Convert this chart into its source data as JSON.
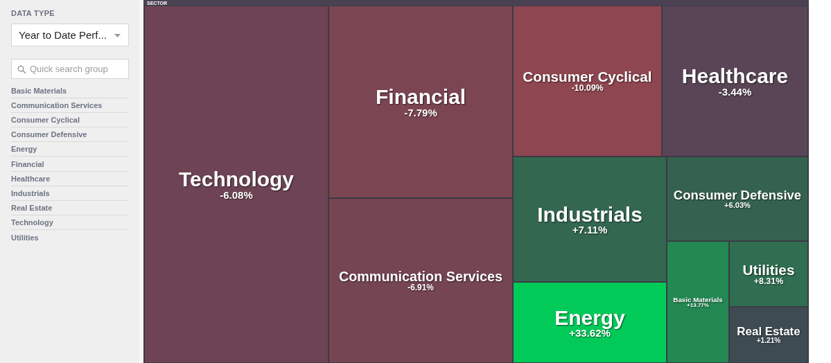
{
  "chart_data": [
    {
      "type": "other",
      "title": "DATA TYPE",
      "annotations": [
        "Year to Date Perf...",
        "Quick search group",
        "Basic Materials",
        "Communication Services",
        "Consumer Cyclical",
        "Consumer Defensive",
        "Energy",
        "Financial",
        "Healthcare",
        "Industrials",
        "Real Estate",
        "Technology",
        "Utilities"
      ]
    },
    {
      "type": "other",
      "title": "SECTOR",
      "categories": [
        "Technology",
        "Financial",
        "Communication Services",
        "Consumer Cyclical",
        "Healthcare",
        "Industrials",
        "Energy",
        "Consumer Defensive",
        "Basic Materials",
        "Utilities",
        "Real Estate"
      ],
      "values": [
        -6.08,
        -7.79,
        -6.91,
        -10.09,
        -3.44,
        7.11,
        33.62,
        6.03,
        13.77,
        8.31,
        1.21
      ],
      "value_labels": [
        "-6.08%",
        "-7.79%",
        "-6.91%",
        "-10.09%",
        "-3.44%",
        "+7.11%",
        "+33.62%",
        "+6.03%",
        "+13.77%",
        "+8.31%",
        "+1.21%"
      ]
    }
  ]
}
